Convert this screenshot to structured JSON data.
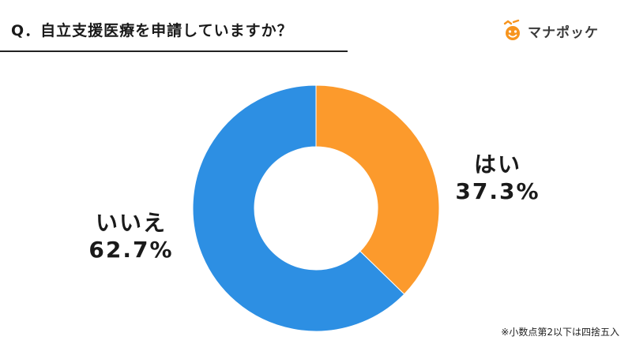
{
  "header": {
    "title": "Q．自立支援医療を申請していますか？"
  },
  "logo": {
    "text": "マナポッケ",
    "icon": "manapokke-logo-icon",
    "colors": {
      "orange": "#f7941d",
      "text": "#3a3a3a"
    }
  },
  "chart_data": {
    "type": "pie",
    "donut": true,
    "categories": [
      "はい",
      "いいえ"
    ],
    "values": [
      37.3,
      62.7
    ],
    "value_labels": [
      "37.3%",
      "62.7%"
    ],
    "colors": [
      "#fc9a2c",
      "#2d8fe3"
    ],
    "title": "",
    "start_angle": "12 o'clock, clockwise"
  },
  "note": "※小数点第2以下は四捨五入"
}
